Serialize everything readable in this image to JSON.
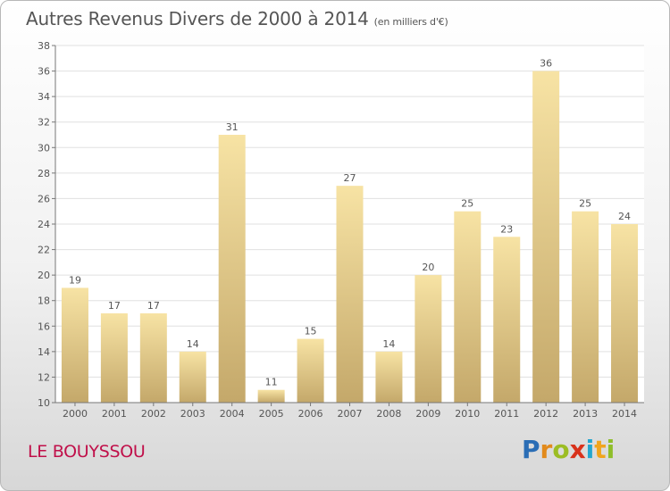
{
  "header": {
    "title": "Autres Revenus Divers de 2000 à 2014",
    "subtitle": "(en milliers d'€)"
  },
  "footer": {
    "commune": "LE BOUYSSOU",
    "logo": {
      "p": "P",
      "r": "r",
      "o": "o",
      "x": "x",
      "i": "i",
      "t": "t",
      "i2": "i"
    }
  },
  "colors": {
    "bar_top": "#f7e3a4",
    "bar_bottom": "#c4a86a",
    "axis": "#777777",
    "grid": "#e0e0e0",
    "title": "#555555",
    "commune": "#c0104a"
  },
  "chart_data": {
    "type": "bar",
    "title": "Autres Revenus Divers de 2000 à 2014",
    "subtitle": "(en milliers d'€)",
    "categories": [
      "2000",
      "2001",
      "2002",
      "2003",
      "2004",
      "2005",
      "2006",
      "2007",
      "2008",
      "2009",
      "2010",
      "2011",
      "2012",
      "2013",
      "2014"
    ],
    "values": [
      19,
      17,
      17,
      14,
      31,
      11,
      15,
      27,
      14,
      20,
      25,
      23,
      36,
      25,
      24
    ],
    "ylim": [
      10,
      38
    ],
    "yticks": [
      10,
      12,
      14,
      16,
      18,
      20,
      22,
      24,
      26,
      28,
      30,
      32,
      34,
      36,
      38
    ],
    "grid": true,
    "xlabel": "",
    "ylabel": ""
  }
}
